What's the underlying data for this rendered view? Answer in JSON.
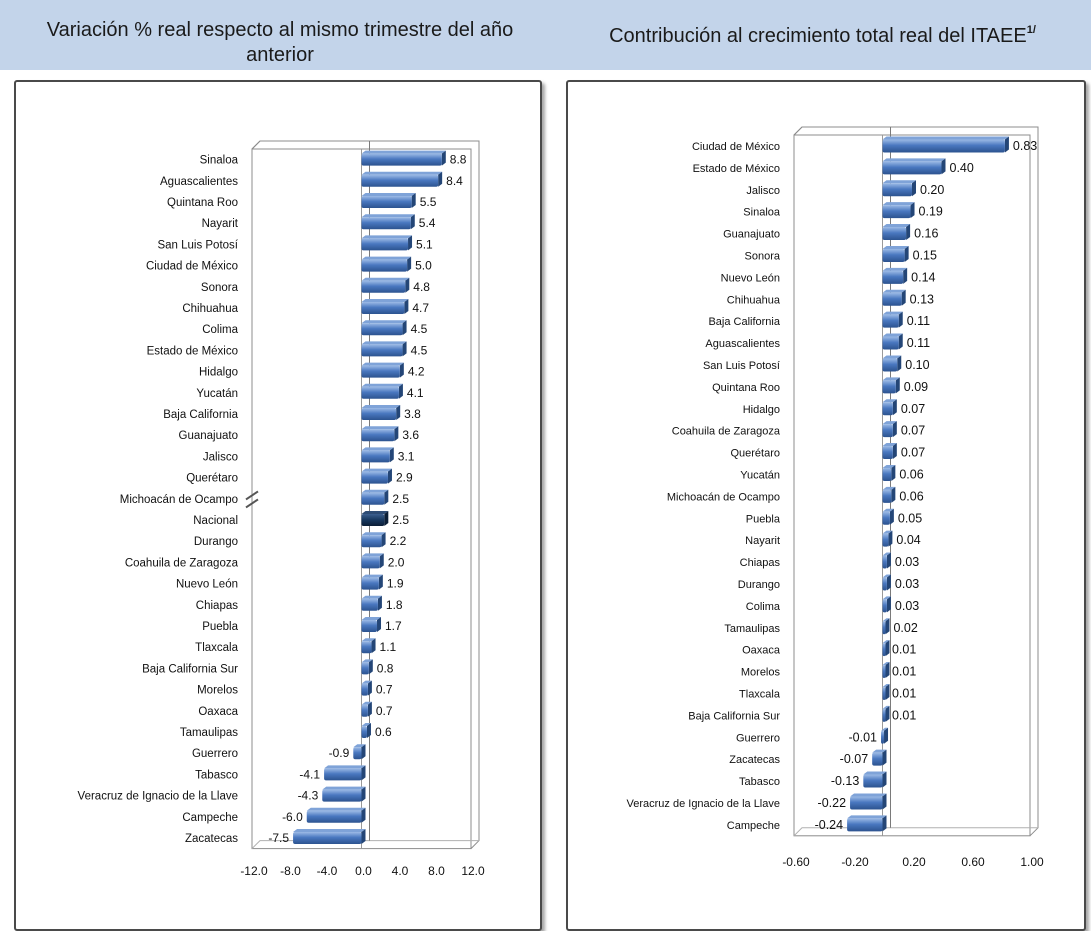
{
  "header": {
    "left_title": "Variación % real respecto al mismo trimestre del año anterior",
    "right_title_main": "Contribución al crecimiento total real del ITAEE",
    "right_title_sup": "1/"
  },
  "colors": {
    "header_bg": "#c3d4ea",
    "bar": "#4a78c0",
    "bar_highlight": "#17375e"
  },
  "chart_data": [
    {
      "type": "bar",
      "orientation": "horizontal",
      "title": "Variación % real respecto al mismo trimestre del año anterior",
      "xlim": [
        -12.0,
        12.0
      ],
      "x_ticks": [
        "-12.0",
        "-8.0",
        "-4.0",
        "0.0",
        "4.0",
        "8.0",
        "12.0"
      ],
      "axis_break": true,
      "highlight": "Nacional",
      "categories": [
        "Sinaloa",
        "Aguascalientes",
        "Quintana Roo",
        "Nayarit",
        "San Luis Potosí",
        "Ciudad de México",
        "Sonora",
        "Chihuahua",
        "Colima",
        "Estado de México",
        "Hidalgo",
        "Yucatán",
        "Baja California",
        "Guanajuato",
        "Jalisco",
        "Querétaro",
        "Michoacán de Ocampo",
        "Nacional",
        "Durango",
        "Coahuila de Zaragoza",
        "Nuevo León",
        "Chiapas",
        "Puebla",
        "Tlaxcala",
        "Baja California Sur",
        "Morelos",
        "Oaxaca",
        "Tamaulipas",
        "Guerrero",
        "Tabasco",
        "Veracruz de Ignacio de la Llave",
        "Campeche",
        "Zacatecas"
      ],
      "values": [
        8.8,
        8.4,
        5.5,
        5.4,
        5.1,
        5.0,
        4.8,
        4.7,
        4.5,
        4.5,
        4.2,
        4.1,
        3.8,
        3.6,
        3.1,
        2.9,
        2.5,
        2.5,
        2.2,
        2.0,
        1.9,
        1.8,
        1.7,
        1.1,
        0.8,
        0.7,
        0.7,
        0.6,
        -0.9,
        -4.1,
        -4.3,
        -6.0,
        -7.5
      ],
      "labels": [
        "8.8",
        "8.4",
        "5.5",
        "5.4",
        "5.1",
        "5.0",
        "4.8",
        "4.7",
        "4.5",
        "4.5",
        "4.2",
        "4.1",
        "3.8",
        "3.6",
        "3.1",
        "2.9",
        "2.5",
        "2.5",
        "2.2",
        "2.0",
        "1.9",
        "1.8",
        "1.7",
        "1.1",
        "0.8",
        "0.7",
        "0.7",
        "0.6",
        "-0.9",
        "-4.1",
        "-4.3",
        "-6.0",
        "-7.5"
      ]
    },
    {
      "type": "bar",
      "orientation": "horizontal",
      "title": "Contribución al crecimiento total real del ITAEE",
      "xlim": [
        -0.6,
        1.0
      ],
      "x_ticks": [
        "-0.60",
        "-0.20",
        "0.20",
        "0.60",
        "1.00"
      ],
      "categories": [
        "Ciudad de México",
        "Estado de México",
        "Jalisco",
        "Sinaloa",
        "Guanajuato",
        "Sonora",
        "Nuevo León",
        "Chihuahua",
        "Baja California",
        "Aguascalientes",
        "San Luis Potosí",
        "Quintana Roo",
        "Hidalgo",
        "Coahuila de Zaragoza",
        "Querétaro",
        "Yucatán",
        "Michoacán de Ocampo",
        "Puebla",
        "Nayarit",
        "Chiapas",
        "Durango",
        "Colima",
        "Tamaulipas",
        "Oaxaca",
        "Morelos",
        "Tlaxcala",
        "Baja California Sur",
        "Guerrero",
        "Zacatecas",
        "Tabasco",
        "Veracruz de Ignacio de la Llave",
        "Campeche"
      ],
      "values": [
        0.83,
        0.4,
        0.2,
        0.19,
        0.16,
        0.15,
        0.14,
        0.13,
        0.11,
        0.11,
        0.1,
        0.09,
        0.07,
        0.07,
        0.07,
        0.06,
        0.06,
        0.05,
        0.04,
        0.03,
        0.03,
        0.03,
        0.02,
        0.01,
        0.01,
        0.01,
        0.01,
        -0.01,
        -0.07,
        -0.13,
        -0.22,
        -0.24
      ],
      "labels": [
        "0.83",
        "0.40",
        "0.20",
        "0.19",
        "0.16",
        "0.15",
        "0.14",
        "0.13",
        "0.11",
        "0.11",
        "0.10",
        "0.09",
        "0.07",
        "0.07",
        "0.07",
        "0.06",
        "0.06",
        "0.05",
        "0.04",
        "0.03",
        "0.03",
        "0.03",
        "0.02",
        "0.01",
        "0.01",
        "0.01",
        "0.01",
        "-0.01",
        "-0.07",
        "-0.13",
        "-0.22",
        "-0.24"
      ]
    }
  ]
}
